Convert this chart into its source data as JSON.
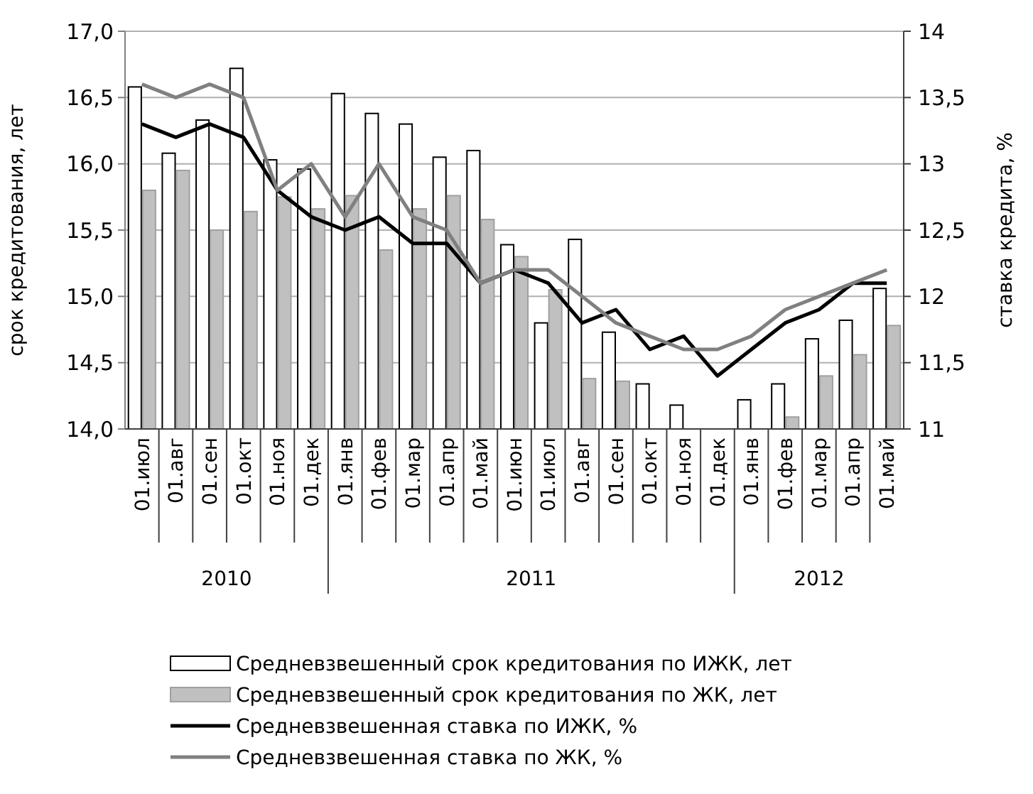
{
  "chart_data": {
    "type": "bar",
    "ylabel": "срок кредитования, лет",
    "y2label": "ставка кредита, %",
    "categories": [
      "01.июл",
      "01.авг",
      "01.сен",
      "01.окт",
      "01.ноя",
      "01.дек",
      "01.янв",
      "01.фев",
      "01.мар",
      "01.апр",
      "01.май",
      "01.июн",
      "01.июл",
      "01.авг",
      "01.сен",
      "01.окт",
      "01.ноя",
      "01.дек",
      "01.янв",
      "01.фев",
      "01.мар",
      "01.апр",
      "01.май"
    ],
    "series": [
      {
        "name": "Средневзвешенный срок кредитования по ИЖК, лет",
        "color": "#ffffff",
        "values": [
          16.58,
          16.08,
          16.33,
          16.72,
          16.03,
          15.96,
          16.53,
          16.38,
          16.3,
          16.05,
          16.1,
          15.39,
          14.8,
          15.43,
          14.73,
          14.34,
          14.18,
          null,
          14.22,
          14.34,
          14.68,
          14.82,
          15.06
        ]
      },
      {
        "name": "Средневзвешенный срок кредитования по ЖК, лет",
        "color": "#c0c0c0",
        "values": [
          15.8,
          15.95,
          15.5,
          15.64,
          15.75,
          15.66,
          15.76,
          15.35,
          15.66,
          15.76,
          15.58,
          15.3,
          15.05,
          14.38,
          14.36,
          null,
          null,
          null,
          null,
          14.09,
          14.4,
          14.56,
          14.78
        ]
      },
      {
        "name": "Средневзвешенная ставка по ИЖК, %",
        "type": "line",
        "axis": "y2",
        "color": "#000000",
        "values": [
          13.3,
          13.2,
          13.3,
          13.2,
          12.8,
          12.6,
          12.5,
          12.6,
          12.4,
          12.4,
          12.1,
          12.2,
          12.1,
          11.8,
          11.9,
          11.6,
          11.7,
          11.4,
          11.6,
          11.8,
          11.9,
          12.1,
          12.1
        ]
      },
      {
        "name": "Средневзвешенная ставка по ЖК, %",
        "type": "line",
        "axis": "y2",
        "color": "#808080",
        "values": [
          13.6,
          13.5,
          13.6,
          13.5,
          12.8,
          13.0,
          12.6,
          13.0,
          12.6,
          12.5,
          12.1,
          12.2,
          12.2,
          12.0,
          11.8,
          11.7,
          11.6,
          11.6,
          11.7,
          11.9,
          12.0,
          12.1,
          12.2
        ]
      }
    ],
    "ylim": [
      14,
      17
    ],
    "yticks": [
      {
        "value": 14,
        "label": "14,0"
      },
      {
        "value": 14.5,
        "label": "14,5"
      },
      {
        "value": 15,
        "label": "15,0"
      },
      {
        "value": 15.5,
        "label": "15,5"
      },
      {
        "value": 16,
        "label": "16,0"
      },
      {
        "value": 16.5,
        "label": "16,5"
      },
      {
        "value": 17,
        "label": "17,0"
      }
    ],
    "y2lim": [
      11,
      14
    ],
    "y2ticks": [
      11,
      {
        "value": 11.5,
        "label": "11,5"
      },
      12,
      {
        "value": 12.5,
        "label": "12,5"
      },
      13,
      {
        "value": 13.5,
        "label": "13,5"
      },
      14
    ],
    "annotations": [
      "2010",
      "2011",
      "2012"
    ],
    "grid": "y",
    "legend": "bottom",
    "line_style": "solid",
    "marker": "none"
  }
}
